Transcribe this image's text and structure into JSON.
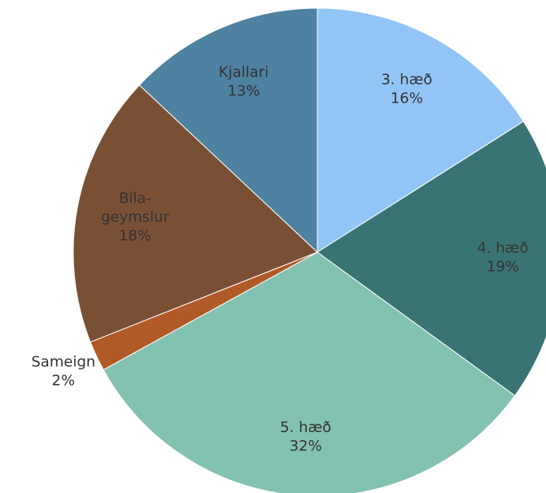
{
  "chart_data": {
    "type": "pie",
    "categories": [
      "3. hæð",
      "4. hæð",
      "5. hæð",
      "Sameign",
      "Bíla-geymslur",
      "Kjallari"
    ],
    "values": [
      16,
      19,
      32,
      2,
      18,
      13
    ],
    "value_labels": [
      "16%",
      "19%",
      "32%",
      "2%",
      "18%",
      "13%"
    ],
    "colors": [
      "#92c5f5",
      "#3a7373",
      "#83c2b0",
      "#b05a28",
      "#7a5035",
      "#4f81a0"
    ]
  }
}
